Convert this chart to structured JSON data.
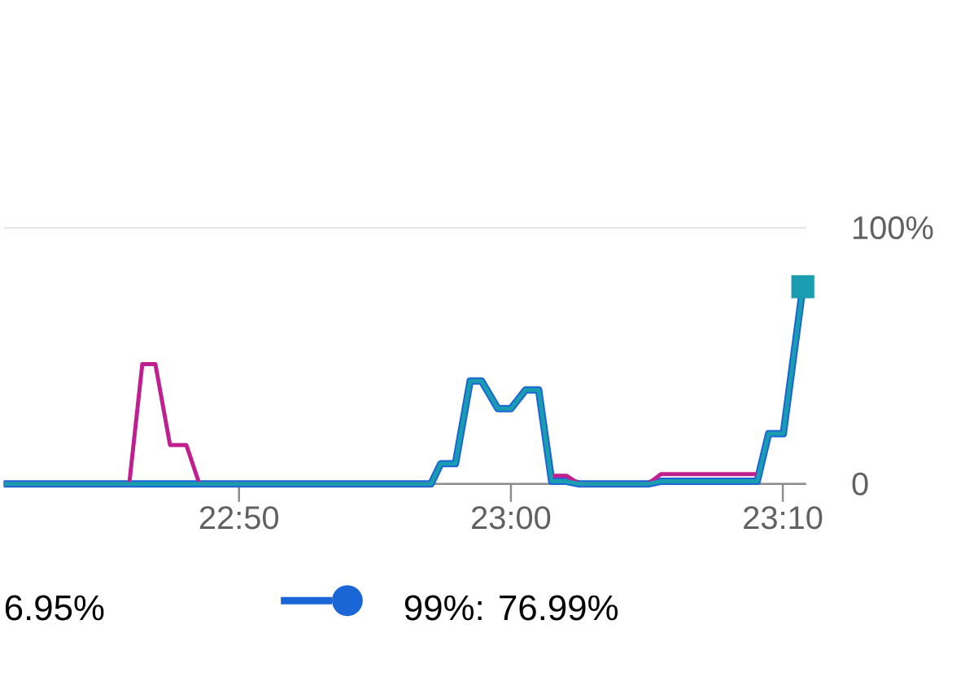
{
  "chart_data": {
    "type": "line",
    "xlim": [
      22.689,
      23.181
    ],
    "ylim": [
      0,
      100
    ],
    "xticks": [
      {
        "value": 22.8333,
        "label": "22:50"
      },
      {
        "value": 23.0,
        "label": "23:00"
      },
      {
        "value": 23.1667,
        "label": "23:10"
      }
    ],
    "yticks": [
      0,
      {
        "value": 100,
        "label": "100%"
      }
    ],
    "grid": "y",
    "legend": "bottom",
    "line_style": "solid",
    "annotations": [
      "6.95%"
    ],
    "series": [
      {
        "color": "#1a66d6",
        "name": "99%: 76.99%",
        "x": [
          22.689,
          22.951,
          22.957,
          22.966,
          22.975,
          22.982,
          22.992,
          23.0,
          23.009,
          23.017,
          23.025,
          23.034,
          23.042,
          23.084,
          23.092,
          23.151,
          23.158,
          23.167,
          23.179
        ],
        "values": [
          0,
          0,
          7.9,
          7.9,
          40.2,
          40.2,
          29.4,
          29.4,
          36.7,
          36.7,
          1,
          1,
          0,
          0,
          1,
          1,
          19.6,
          19.6,
          76.99
        ]
      },
      {
        "color": "#c0208f",
        "x": [
          22.689,
          22.766,
          22.774,
          22.782,
          22.791,
          22.801,
          22.809,
          22.951,
          22.99,
          23.025,
          23.034,
          23.042,
          23.084,
          23.092,
          23.151
        ],
        "values": [
          0,
          0,
          46.8,
          46.8,
          15.2,
          15.2,
          0,
          0,
          null,
          3.2,
          3.2,
          0,
          0,
          3.8,
          3.8
        ]
      },
      {
        "color": "#1a9db0",
        "x": [
          22.689,
          22.951,
          22.957,
          22.966,
          22.975,
          22.982,
          22.992,
          23.0,
          23.009,
          23.017,
          23.025,
          23.034,
          23.042,
          23.084,
          23.092,
          23.151,
          23.158,
          23.167,
          23.179
        ],
        "values": [
          0,
          0,
          7.9,
          7.9,
          40.2,
          40.2,
          29.4,
          29.4,
          36.7,
          36.7,
          1,
          1,
          0,
          0,
          1,
          1,
          19.6,
          19.6,
          76.99
        ]
      },
      {
        "type": "scatter",
        "marker": "square",
        "color": "#1a9db0",
        "x": [
          23.179
        ],
        "values": [
          76.99
        ]
      }
    ]
  }
}
